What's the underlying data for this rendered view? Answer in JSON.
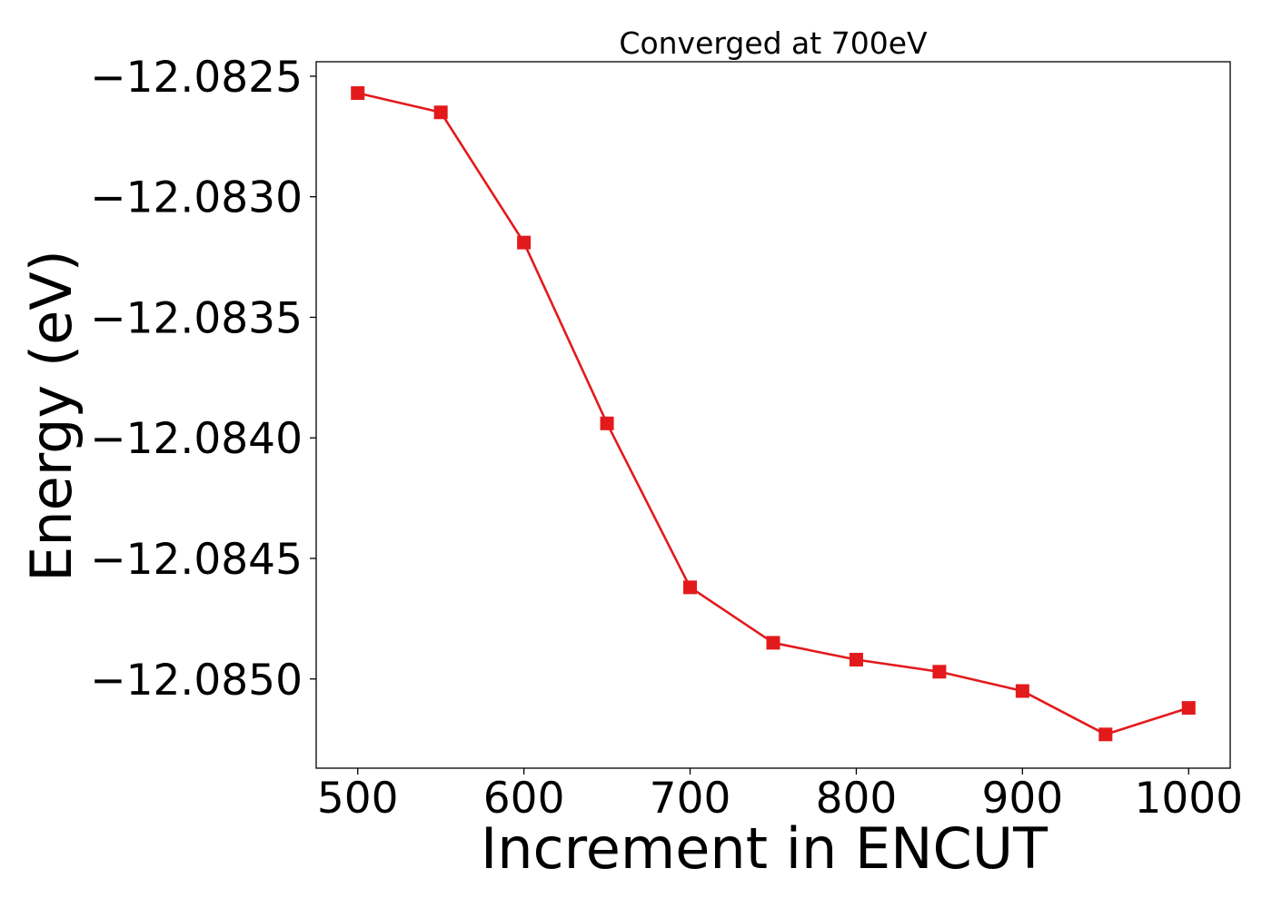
{
  "chart_data": {
    "type": "line",
    "title": "Converged at 700eV",
    "xlabel": "Increment in ENCUT",
    "ylabel": "Energy (eV)",
    "x": [
      500,
      550,
      600,
      650,
      700,
      750,
      800,
      850,
      900,
      950,
      1000
    ],
    "series": [
      {
        "values": [
          -12.08257,
          -12.08265,
          -12.08319,
          -12.08394,
          -12.08462,
          -12.08485,
          -12.08492,
          -12.08497,
          -12.08505,
          -12.08523,
          -12.08512
        ],
        "color": "#e31a1c",
        "marker": "square"
      }
    ],
    "xlim": [
      475,
      1025
    ],
    "ylim": [
      -12.08537,
      -12.08244
    ],
    "xticks": [
      500,
      600,
      700,
      800,
      900,
      1000
    ],
    "xtick_labels": [
      "500",
      "600",
      "700",
      "800",
      "900",
      "1000"
    ],
    "yticks": [
      -12.0825,
      -12.083,
      -12.0835,
      -12.084,
      -12.0845,
      -12.085
    ],
    "ytick_labels": [
      "−12.0825",
      "−12.0830",
      "−12.0835",
      "−12.0840",
      "−12.0845",
      "−12.0850"
    ],
    "grid": false,
    "legend": "none"
  }
}
